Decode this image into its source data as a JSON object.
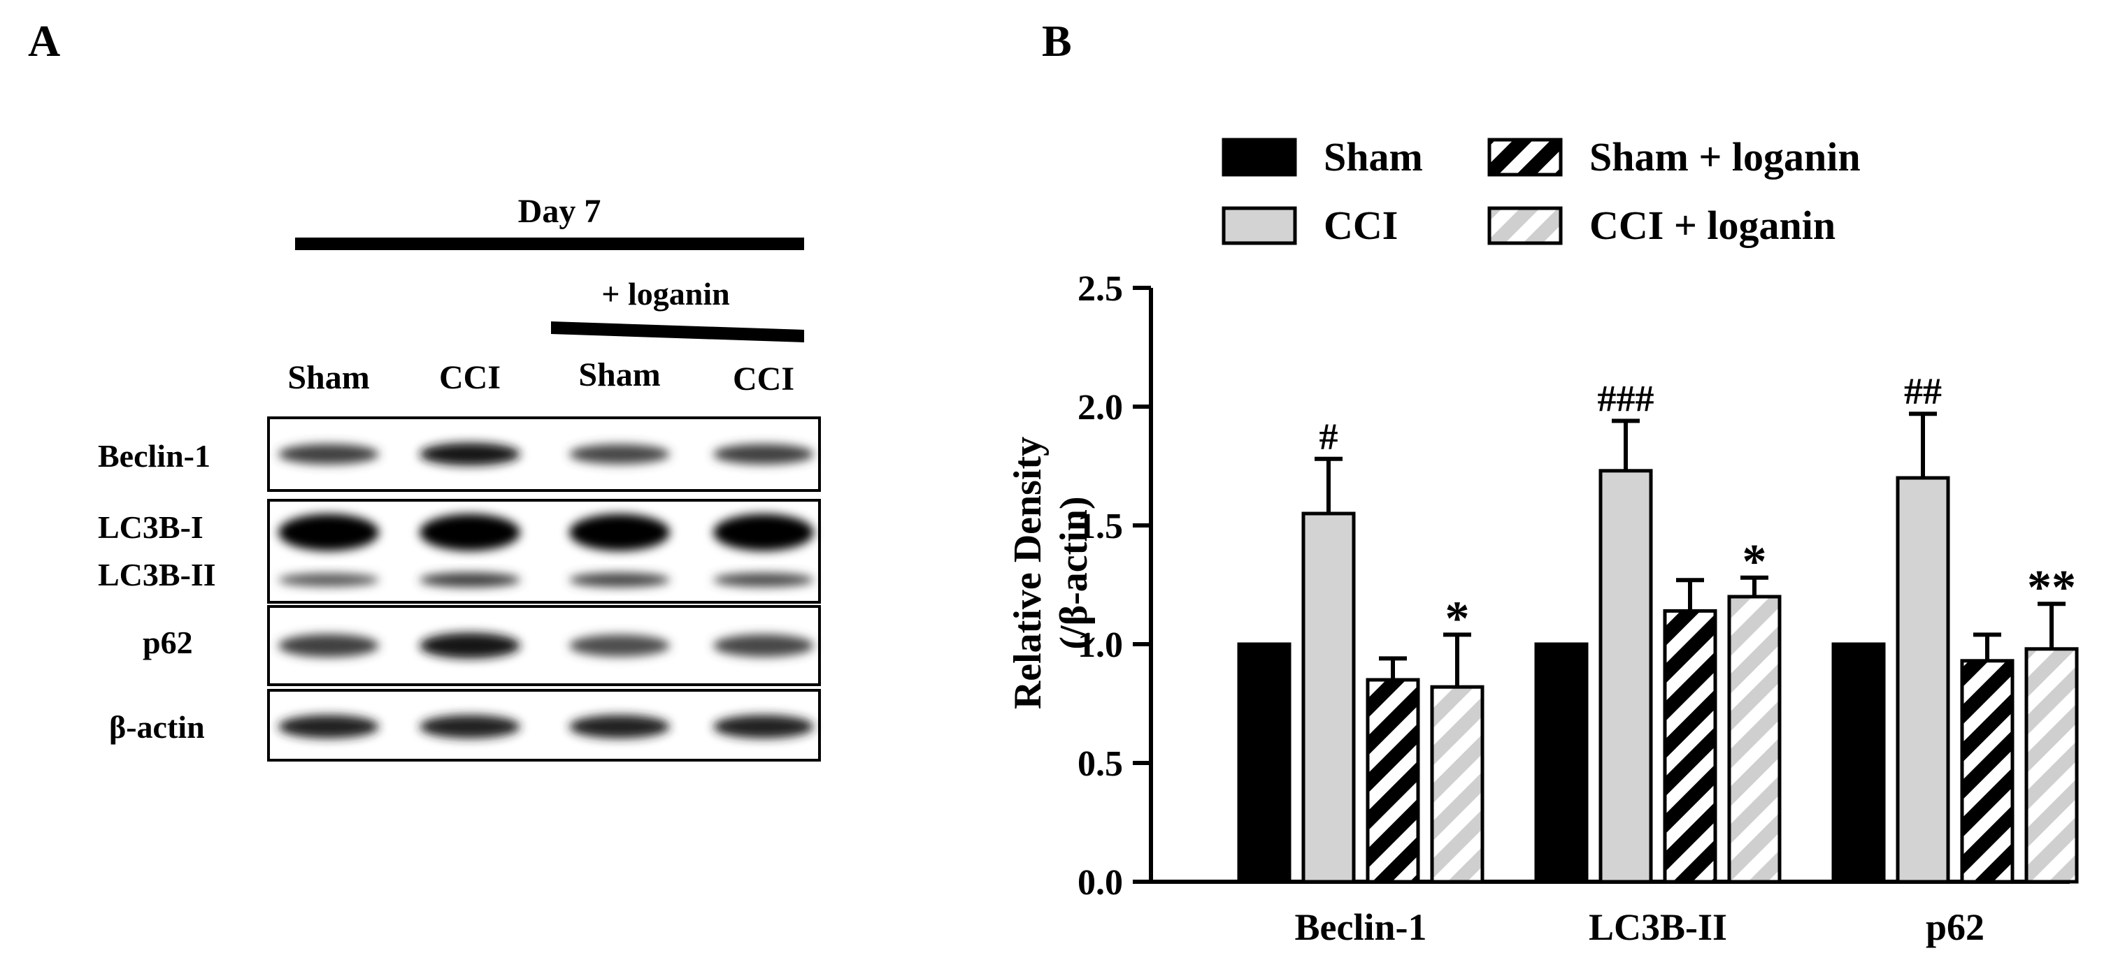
{
  "panel_a": {
    "label": "A",
    "timepoint": "Day 7",
    "treatment": "+ loganin",
    "lanes": [
      "Sham",
      "CCI",
      "Sham",
      "CCI"
    ],
    "blots": [
      {
        "name": "beclin-1",
        "labels": [
          "Beclin-1"
        ],
        "intensity": [
          0.55,
          0.85,
          0.5,
          0.55
        ]
      },
      {
        "name": "lc3b",
        "labels": [
          "LC3B-I",
          "LC3B-II"
        ],
        "intensity": [
          1.0,
          1.0,
          1.0,
          1.0
        ],
        "intensity_lower": [
          0.35,
          0.55,
          0.5,
          0.45
        ]
      },
      {
        "name": "p62",
        "labels": [
          "p62"
        ],
        "intensity": [
          0.55,
          0.85,
          0.45,
          0.5
        ]
      },
      {
        "name": "beta-actin",
        "labels": [
          "β-actin"
        ],
        "intensity": [
          0.75,
          0.75,
          0.75,
          0.75
        ]
      }
    ]
  },
  "chart_data": {
    "panel_label": "B",
    "type": "bar",
    "categories": [
      "Beclin-1",
      "LC3B-II",
      "p62"
    ],
    "series": [
      {
        "name": "Sham",
        "pattern": "solid-black",
        "values": [
          1.0,
          1.0,
          1.0
        ],
        "errors": [
          0,
          0,
          0
        ],
        "marks": [
          "",
          "",
          ""
        ]
      },
      {
        "name": "CCI",
        "pattern": "solid-gray",
        "values": [
          1.55,
          1.73,
          1.7
        ],
        "errors": [
          0.23,
          0.21,
          0.27
        ],
        "marks": [
          "#",
          "###",
          "##"
        ]
      },
      {
        "name": "Sham + loganin",
        "pattern": "black-hatch",
        "values": [
          0.85,
          1.14,
          0.93
        ],
        "errors": [
          0.09,
          0.13,
          0.11
        ],
        "marks": [
          "",
          "",
          ""
        ]
      },
      {
        "name": "CCI + loganin",
        "pattern": "gray-hatch",
        "values": [
          0.82,
          1.2,
          0.98
        ],
        "errors": [
          0.22,
          0.08,
          0.19
        ],
        "marks": [
          "*",
          "*",
          "**"
        ]
      }
    ],
    "ylabel_line1": "Relative Density",
    "ylabel_line2": "(/β-actin)",
    "ylim": [
      0,
      2.5
    ],
    "yticks": [
      "0.0",
      "0.5",
      "1.0",
      "1.5",
      "2.0",
      "2.5"
    ],
    "ytick_values": [
      0,
      0.5,
      1.0,
      1.5,
      2.0,
      2.5
    ],
    "legend_position": "top",
    "grid": false
  }
}
